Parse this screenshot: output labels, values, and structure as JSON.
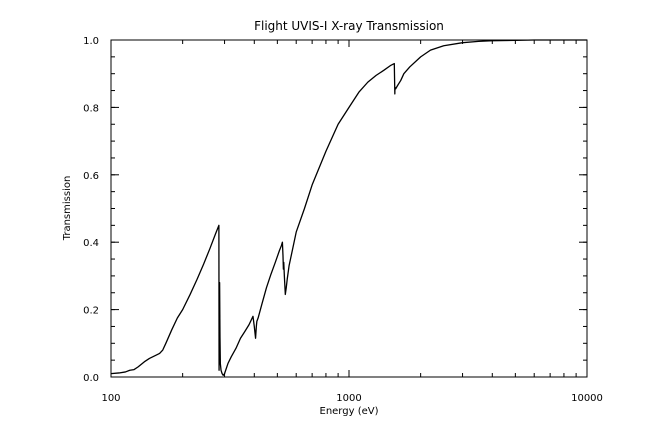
{
  "chart_data": {
    "type": "line",
    "title": "Flight UVIS-I X-ray Transmission",
    "xlabel": "Energy (eV)",
    "ylabel": "Transmission",
    "xscale": "log",
    "xlim": [
      100,
      10000
    ],
    "ylim": [
      0,
      1.0
    ],
    "x_tick_labels": [
      "100",
      "1000",
      "10000"
    ],
    "y_tick_labels": [
      "0.0",
      "0.2",
      "0.4",
      "0.6",
      "0.8",
      "1.0"
    ],
    "grid": false,
    "legend": "none",
    "series": [
      {
        "x": [
          100,
          108,
          115,
          120,
          125,
          130,
          138,
          145,
          155,
          160,
          165,
          170,
          180,
          190,
          200,
          215,
          230,
          245,
          260,
          275,
          284,
          284.5,
          286,
          287,
          288,
          290,
          293,
          296,
          300,
          310,
          320,
          335,
          350,
          365,
          380,
          395,
          400,
          405,
          408,
          410,
          415,
          430,
          450,
          470,
          490,
          510,
          520,
          525,
          528,
          530,
          532,
          535,
          540,
          545,
          550,
          560,
          600,
          650,
          700,
          800,
          900,
          1000,
          1100,
          1200,
          1300,
          1400,
          1500,
          1550,
          1558,
          1560,
          1570,
          1600,
          1650,
          1700,
          1800,
          2000,
          2200,
          2500,
          3000,
          3500,
          4000,
          5000,
          6000,
          7000,
          8000,
          9000,
          10000
        ],
        "y": [
          0.01,
          0.012,
          0.015,
          0.02,
          0.022,
          0.03,
          0.045,
          0.055,
          0.065,
          0.07,
          0.08,
          0.1,
          0.14,
          0.175,
          0.2,
          0.245,
          0.29,
          0.335,
          0.38,
          0.425,
          0.45,
          0.02,
          0.28,
          0.12,
          0.04,
          0.02,
          0.01,
          0.005,
          0.01,
          0.04,
          0.06,
          0.085,
          0.115,
          0.135,
          0.155,
          0.18,
          0.15,
          0.115,
          0.15,
          0.165,
          0.175,
          0.215,
          0.265,
          0.305,
          0.34,
          0.375,
          0.39,
          0.4,
          0.36,
          0.32,
          0.34,
          0.3,
          0.245,
          0.265,
          0.29,
          0.33,
          0.43,
          0.5,
          0.57,
          0.67,
          0.75,
          0.8,
          0.845,
          0.875,
          0.895,
          0.91,
          0.925,
          0.93,
          0.84,
          0.86,
          0.855,
          0.865,
          0.88,
          0.9,
          0.92,
          0.95,
          0.97,
          0.983,
          0.992,
          0.996,
          0.998,
          0.999,
          1.0,
          1.0,
          1.0,
          1.0,
          1.0
        ]
      }
    ]
  }
}
